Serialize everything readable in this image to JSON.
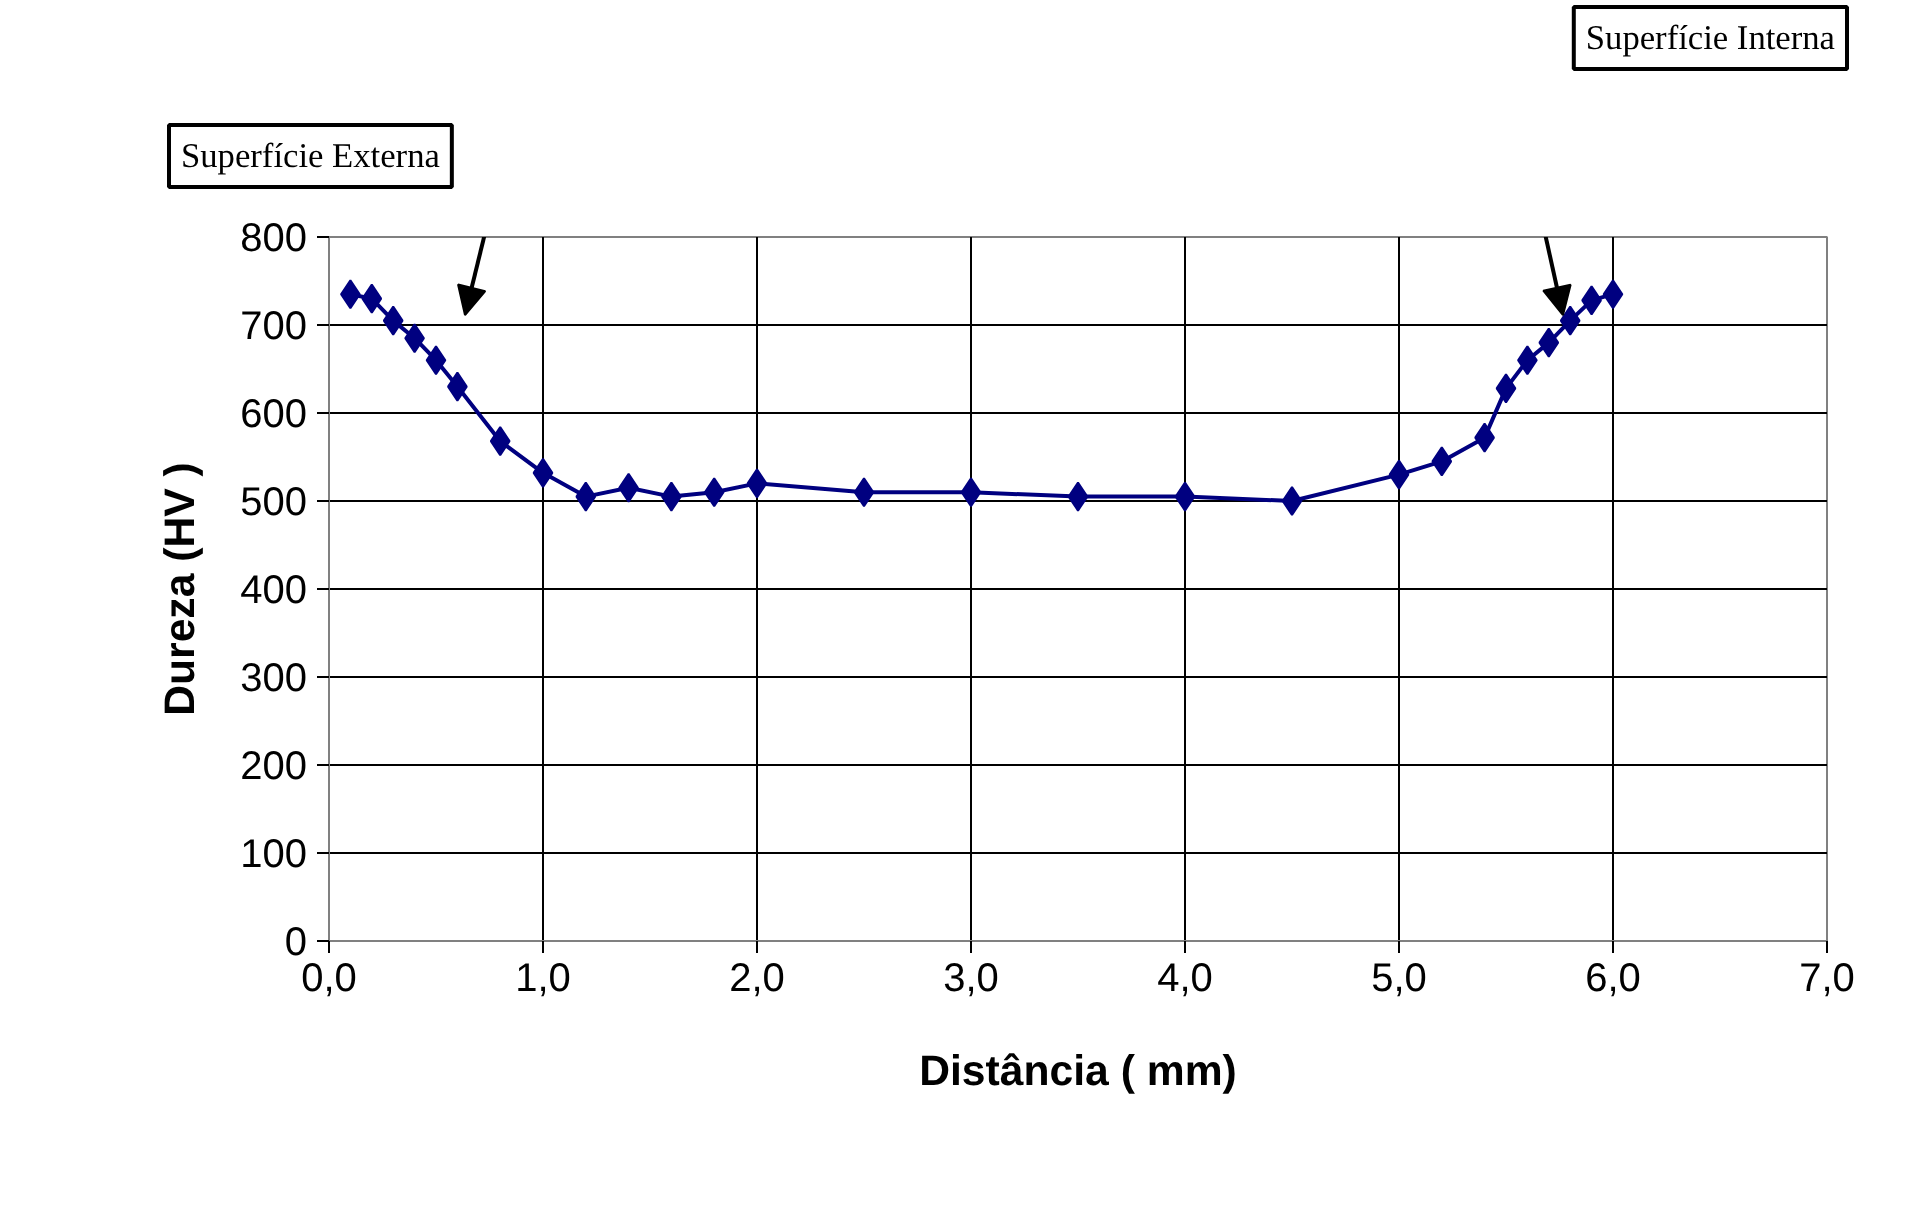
{
  "chart_data": {
    "type": "line",
    "xlabel": "Distância ( mm)",
    "ylabel": "Dureza (HV )",
    "x": [
      0.1,
      0.2,
      0.3,
      0.4,
      0.5,
      0.6,
      0.8,
      1.0,
      1.2,
      1.4,
      1.6,
      1.8,
      2.0,
      2.5,
      3.0,
      3.5,
      4.0,
      4.5,
      5.0,
      5.2,
      5.4,
      5.5,
      5.6,
      5.7,
      5.8,
      5.9,
      6.0
    ],
    "series": [
      {
        "color": "#000080",
        "values": [
          735,
          730,
          705,
          685,
          660,
          630,
          568,
          532,
          505,
          515,
          505,
          510,
          520,
          510,
          510,
          505,
          505,
          500,
          530,
          545,
          572,
          628,
          660,
          680,
          705,
          728,
          735
        ]
      }
    ],
    "xlim": [
      0,
      7
    ],
    "ylim": [
      0,
      800
    ],
    "xticks": [
      {
        "value": 0,
        "label": "0,0"
      },
      {
        "value": 1,
        "label": "1,0"
      },
      {
        "value": 2,
        "label": "2,0"
      },
      {
        "value": 3,
        "label": "3,0"
      },
      {
        "value": 4,
        "label": "4,0"
      },
      {
        "value": 5,
        "label": "5,0"
      },
      {
        "value": 6,
        "label": "6,0"
      },
      {
        "value": 7,
        "label": "7,0"
      }
    ],
    "yticks": [
      0,
      100,
      200,
      300,
      400,
      500,
      600,
      700,
      800
    ],
    "grid": true,
    "marker": "diamond",
    "line_style": "solid",
    "annotations": [
      "Superfície Externa",
      "Superfície Interna"
    ]
  }
}
